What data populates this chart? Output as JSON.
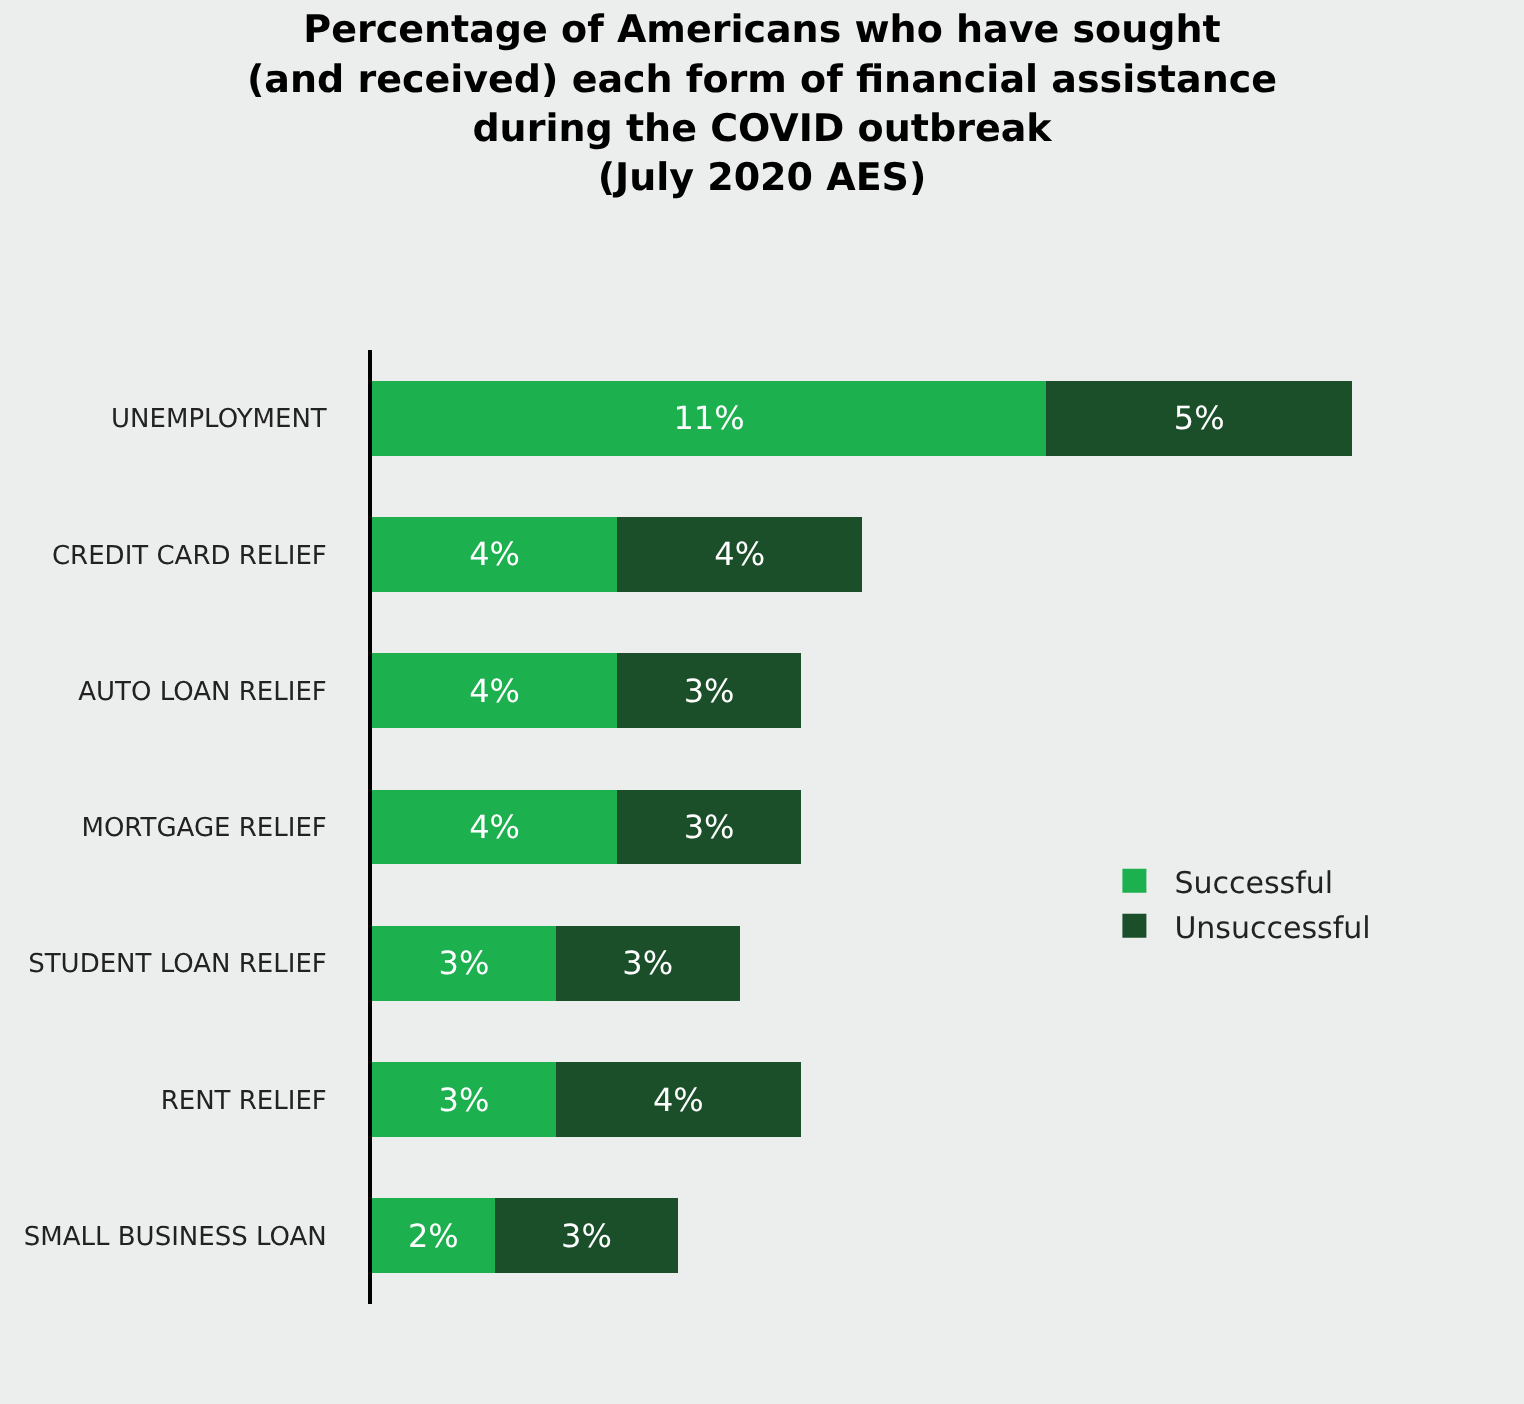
{
  "chart_data": {
    "type": "bar",
    "orientation": "horizontal",
    "stacked": true,
    "title": "Percentage of Americans who have sought\n(and received) each form of financial assistance\nduring the COVID outbreak\n(July 2020 AES)",
    "categories": [
      "UNEMPLOYMENT",
      "CREDIT CARD RELIEF",
      "AUTO LOAN RELIEF",
      "MORTGAGE RELIEF",
      "STUDENT LOAN RELIEF",
      "RENT RELIEF",
      "SMALL BUSINESS LOAN"
    ],
    "series": [
      {
        "name": "Successful",
        "color": "#1db04e",
        "values": [
          11,
          4,
          4,
          4,
          3,
          3,
          2
        ],
        "value_labels": [
          "11%",
          "4%",
          "4%",
          "4%",
          "3%",
          "3%",
          "2%"
        ]
      },
      {
        "name": "Unsuccessful",
        "color": "#1a4f2a",
        "values": [
          5,
          4,
          3,
          3,
          3,
          4,
          3
        ],
        "value_labels": [
          "5%",
          "4%",
          "3%",
          "3%",
          "3%",
          "4%",
          "3%"
        ]
      }
    ],
    "tick_labels": "y",
    "grid": false,
    "legend": "right"
  }
}
